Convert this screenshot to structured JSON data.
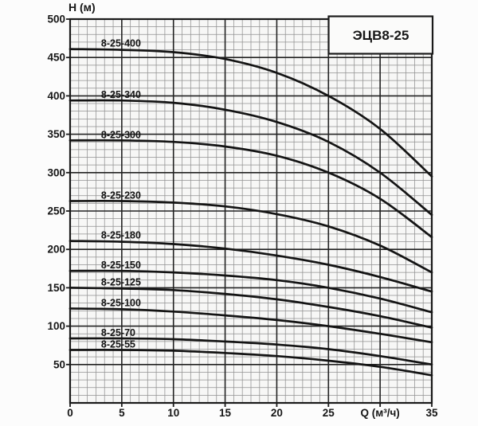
{
  "title_box": {
    "label": "ЭЦВ8-25"
  },
  "axes": {
    "y_label": "Н (м)",
    "x_label": "Q (м³/ч)"
  },
  "chart_data": {
    "type": "line",
    "title": "ЭЦВ8-25",
    "xlabel": "Q (м³/ч)",
    "ylabel": "Н (м)",
    "xlim": [
      0,
      35
    ],
    "ylim": [
      0,
      500
    ],
    "x_ticks": [
      0,
      5,
      10,
      15,
      20,
      25,
      35
    ],
    "xlabel_at": 30,
    "y_ticks": [
      50,
      100,
      150,
      200,
      250,
      300,
      350,
      400,
      450,
      500
    ],
    "grid": "graph-paper (minor + major)",
    "legend_position": "inline-labels-above-curves",
    "curve_label_q": 3,
    "x": [
      0,
      5,
      10,
      15,
      20,
      25,
      30,
      35
    ],
    "series": [
      {
        "name": "8-25-400",
        "values": [
          461,
          460,
          457,
          448,
          430,
          400,
          357,
          295
        ]
      },
      {
        "name": "8-25-340",
        "values": [
          394,
          394,
          391,
          382,
          366,
          340,
          300,
          245
        ]
      },
      {
        "name": "8-25-300",
        "values": [
          342,
          342,
          340,
          334,
          322,
          300,
          266,
          216
        ]
      },
      {
        "name": "8-25-230",
        "values": [
          263,
          263,
          261,
          256,
          246,
          230,
          205,
          170
        ]
      },
      {
        "name": "8-25-180",
        "values": [
          211,
          210,
          207,
          201,
          192,
          180,
          164,
          145
        ]
      },
      {
        "name": "8-25-150",
        "values": [
          172,
          172,
          170,
          166,
          160,
          150,
          136,
          118
        ]
      },
      {
        "name": "8-25-125",
        "values": [
          150,
          149,
          147,
          142,
          135,
          125,
          113,
          98
        ]
      },
      {
        "name": "8-25-100",
        "values": [
          123,
          122,
          119,
          114,
          108,
          100,
          90,
          79
        ]
      },
      {
        "name": "8-25-70",
        "values": [
          84,
          84,
          83,
          80,
          76,
          70,
          61,
          50
        ]
      },
      {
        "name": "8-25-55",
        "values": [
          69,
          69,
          68,
          65,
          61,
          55,
          47,
          36
        ]
      }
    ],
    "colors": {
      "curve": "#141414",
      "grid_minor": "#909090",
      "grid_major": "#222222",
      "plot_bg": "#f7f7f6",
      "box_bg": "#fbfbfa"
    }
  }
}
